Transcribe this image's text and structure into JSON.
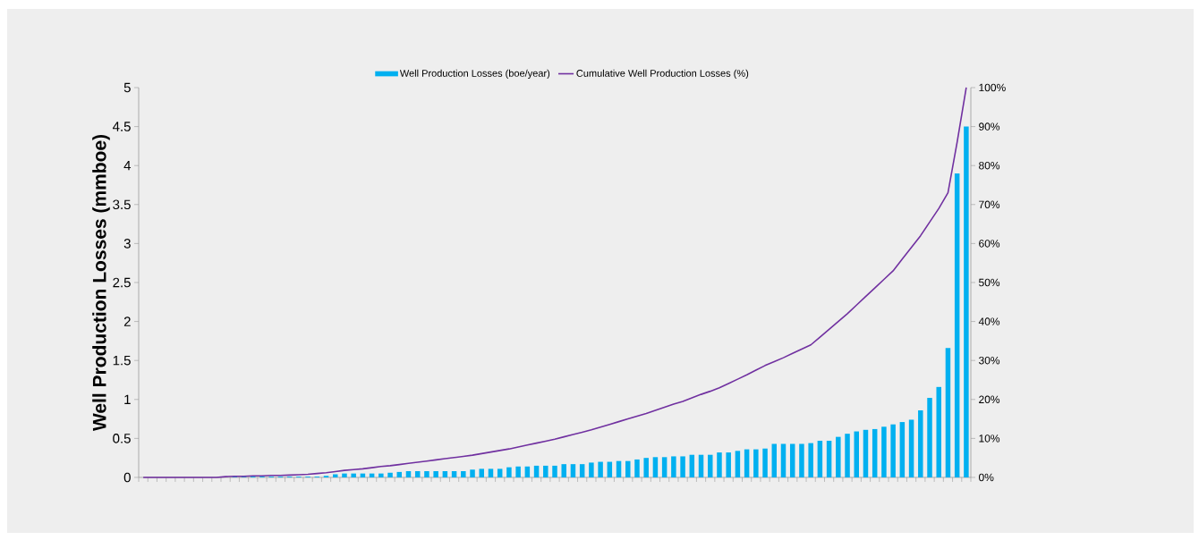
{
  "chart_data": {
    "type": "bar",
    "ylabel": "Well Production Losses (mmboe)",
    "categories": [
      null,
      null,
      null,
      null,
      null,
      null,
      null,
      null,
      null,
      null,
      null,
      null,
      null,
      null,
      null,
      null,
      null,
      null,
      null,
      null,
      null,
      null,
      null,
      null,
      null,
      null,
      null,
      null,
      null,
      null,
      null,
      null,
      null,
      null,
      null,
      null,
      null,
      null,
      null,
      null,
      null,
      null,
      null,
      null,
      null,
      null,
      null,
      null,
      null,
      null,
      null,
      null,
      null,
      null,
      null,
      null,
      null,
      null,
      null,
      null,
      null,
      null,
      null,
      null,
      null,
      null,
      null,
      null,
      null,
      null,
      null,
      null,
      null,
      null,
      null,
      null,
      null,
      null,
      null,
      null,
      null,
      null,
      null,
      null,
      null,
      null,
      null,
      null,
      null,
      null,
      null
    ],
    "series": [
      {
        "name": "Well Production Losses (boe/year)",
        "color": "#00b0f0",
        "values": [
          0,
          0,
          0,
          0,
          0,
          0,
          0,
          0,
          0,
          0,
          0.01,
          0.01,
          0.01,
          0.01,
          0.01,
          0.01,
          0.01,
          0.01,
          0.01,
          0.01,
          0.02,
          0.04,
          0.05,
          0.05,
          0.05,
          0.05,
          0.05,
          0.06,
          0.07,
          0.08,
          0.08,
          0.08,
          0.08,
          0.08,
          0.08,
          0.08,
          0.1,
          0.11,
          0.11,
          0.11,
          0.13,
          0.14,
          0.14,
          0.15,
          0.15,
          0.15,
          0.17,
          0.17,
          0.17,
          0.19,
          0.2,
          0.2,
          0.21,
          0.21,
          0.23,
          0.25,
          0.26,
          0.26,
          0.27,
          0.27,
          0.29,
          0.29,
          0.29,
          0.32,
          0.32,
          0.34,
          0.36,
          0.36,
          0.37,
          0.43,
          0.43,
          0.43,
          0.43,
          0.44,
          0.47,
          0.47,
          0.52,
          0.56,
          0.59,
          0.61,
          0.62,
          0.65,
          0.68,
          0.71,
          0.74,
          0.86,
          1.02,
          1.16,
          1.66,
          3.9,
          4.5
        ]
      },
      {
        "name": "Cumulative Well Production Losses (%)",
        "type": "line",
        "axis": "y2",
        "color": "#7030a0",
        "values": [
          0,
          0,
          0,
          0,
          0,
          0,
          0,
          0,
          0,
          0.2,
          0.3,
          0.3,
          0.4,
          0.4,
          0.5,
          0.5,
          0.6,
          0.7,
          0.8,
          1.0,
          1.2,
          1.5,
          1.8,
          2.0,
          2.2,
          2.5,
          2.8,
          3.0,
          3.3,
          3.6,
          3.9,
          4.2,
          4.5,
          4.8,
          5.1,
          5.4,
          5.7,
          6.1,
          6.5,
          6.9,
          7.3,
          7.8,
          8.3,
          8.8,
          9.3,
          9.8,
          10.4,
          11.0,
          11.6,
          12.2,
          12.9,
          13.6,
          14.3,
          15.0,
          15.7,
          16.4,
          17.2,
          18.0,
          18.8,
          19.5,
          20.4,
          21.3,
          22.1,
          23.0,
          24.1,
          25.2,
          26.3,
          27.5,
          28.7,
          29.7,
          30.7,
          31.8,
          32.9,
          34.0,
          36.0,
          38.0,
          40.0,
          42.0,
          44.2,
          46.4,
          48.6,
          50.8,
          53.0,
          56.0,
          59.0,
          62.0,
          65.5,
          69.0,
          73.0,
          86.0,
          100.0
        ]
      }
    ],
    "ylim": [
      0,
      5
    ],
    "yticks": [
      0,
      0.5,
      1,
      1.5,
      2,
      2.5,
      3,
      3.5,
      4,
      4.5,
      5
    ],
    "y2lim": [
      0,
      100
    ],
    "y2ticks": [
      {
        "value": 0,
        "label": "0%"
      },
      {
        "value": 10,
        "label": "10%"
      },
      {
        "value": 20,
        "label": "20%"
      },
      {
        "value": 30,
        "label": "30%"
      },
      {
        "value": 40,
        "label": "40%"
      },
      {
        "value": 50,
        "label": "50%"
      },
      {
        "value": 60,
        "label": "60%"
      },
      {
        "value": 70,
        "label": "70%"
      },
      {
        "value": 80,
        "label": "80%"
      },
      {
        "value": 90,
        "label": "90%"
      },
      {
        "value": 100,
        "label": "100%"
      }
    ],
    "legend": "top"
  }
}
